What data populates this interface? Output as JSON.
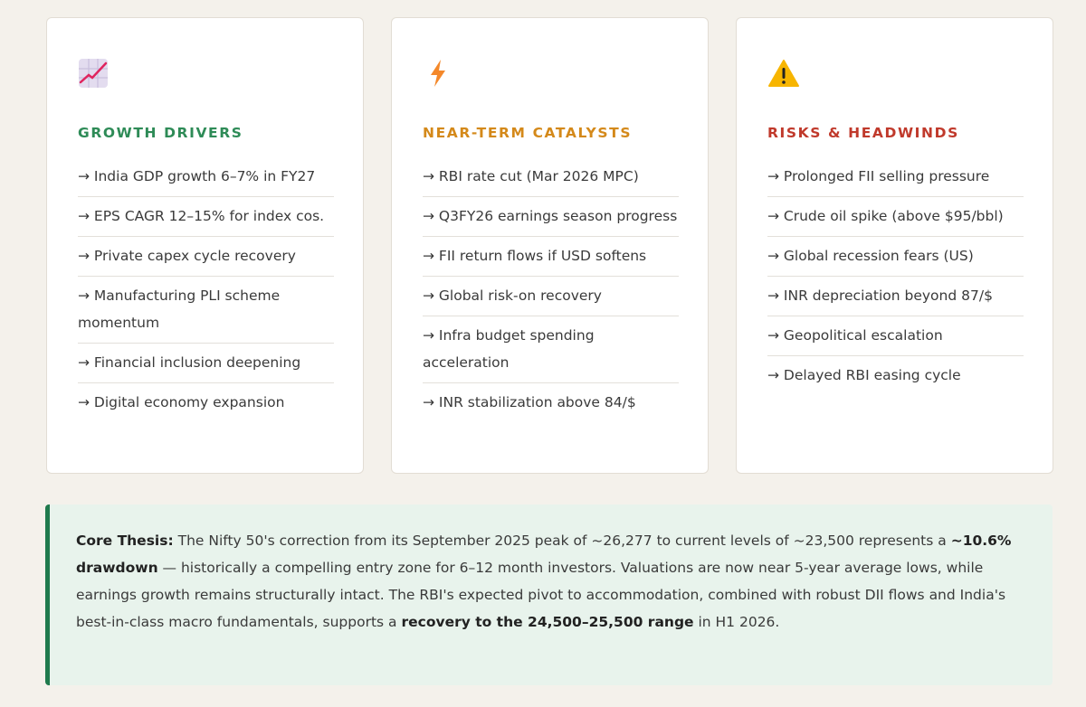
{
  "cards": [
    {
      "icon": "chart-increasing-icon",
      "title": "GROWTH DRIVERS",
      "color": "#2e8b57",
      "items": [
        "→ India GDP growth 6–7% in FY27",
        "→ EPS CAGR 12–15% for index cos.",
        "→ Private capex cycle recovery",
        "→ Manufacturing PLI scheme momentum",
        "→ Financial inclusion deepening",
        "→ Digital economy expansion"
      ]
    },
    {
      "icon": "lightning-icon",
      "title": "NEAR-TERM CATALYSTS",
      "color": "#d4891a",
      "items": [
        "→ RBI rate cut (Mar 2026 MPC)",
        "→ Q3FY26 earnings season progress",
        "→ FII return flows if USD softens",
        "→ Global risk-on recovery",
        "→ Infra budget spending acceleration",
        "→ INR stabilization above 84/$"
      ]
    },
    {
      "icon": "warning-icon",
      "title": "RISKS & HEADWINDS",
      "color": "#c0392b",
      "items": [
        "→ Prolonged FII selling pressure",
        "→ Crude oil spike (above $95/bbl)",
        "→ Global recession fears (US)",
        "→ INR depreciation beyond 87/$",
        "→ Geopolitical escalation",
        "→ Delayed RBI easing cycle"
      ]
    }
  ],
  "thesis": {
    "label": "Core Thesis:",
    "t1": " The Nifty 50's correction from its September 2025 peak of ~26,277 to current levels of ~23,500 represents a ",
    "b1": "~10.6% drawdown",
    "t2": " — historically a compelling entry zone for 6–12 month investors. Valuations are now near 5-year average lows, while earnings growth remains structurally intact. The RBI's expected pivot to accommodation, combined with robust DII flows and India's best-in-class macro fundamentals, supports a ",
    "b2": "recovery to the 24,500–25,500 range",
    "t3": " in H1 2026."
  }
}
